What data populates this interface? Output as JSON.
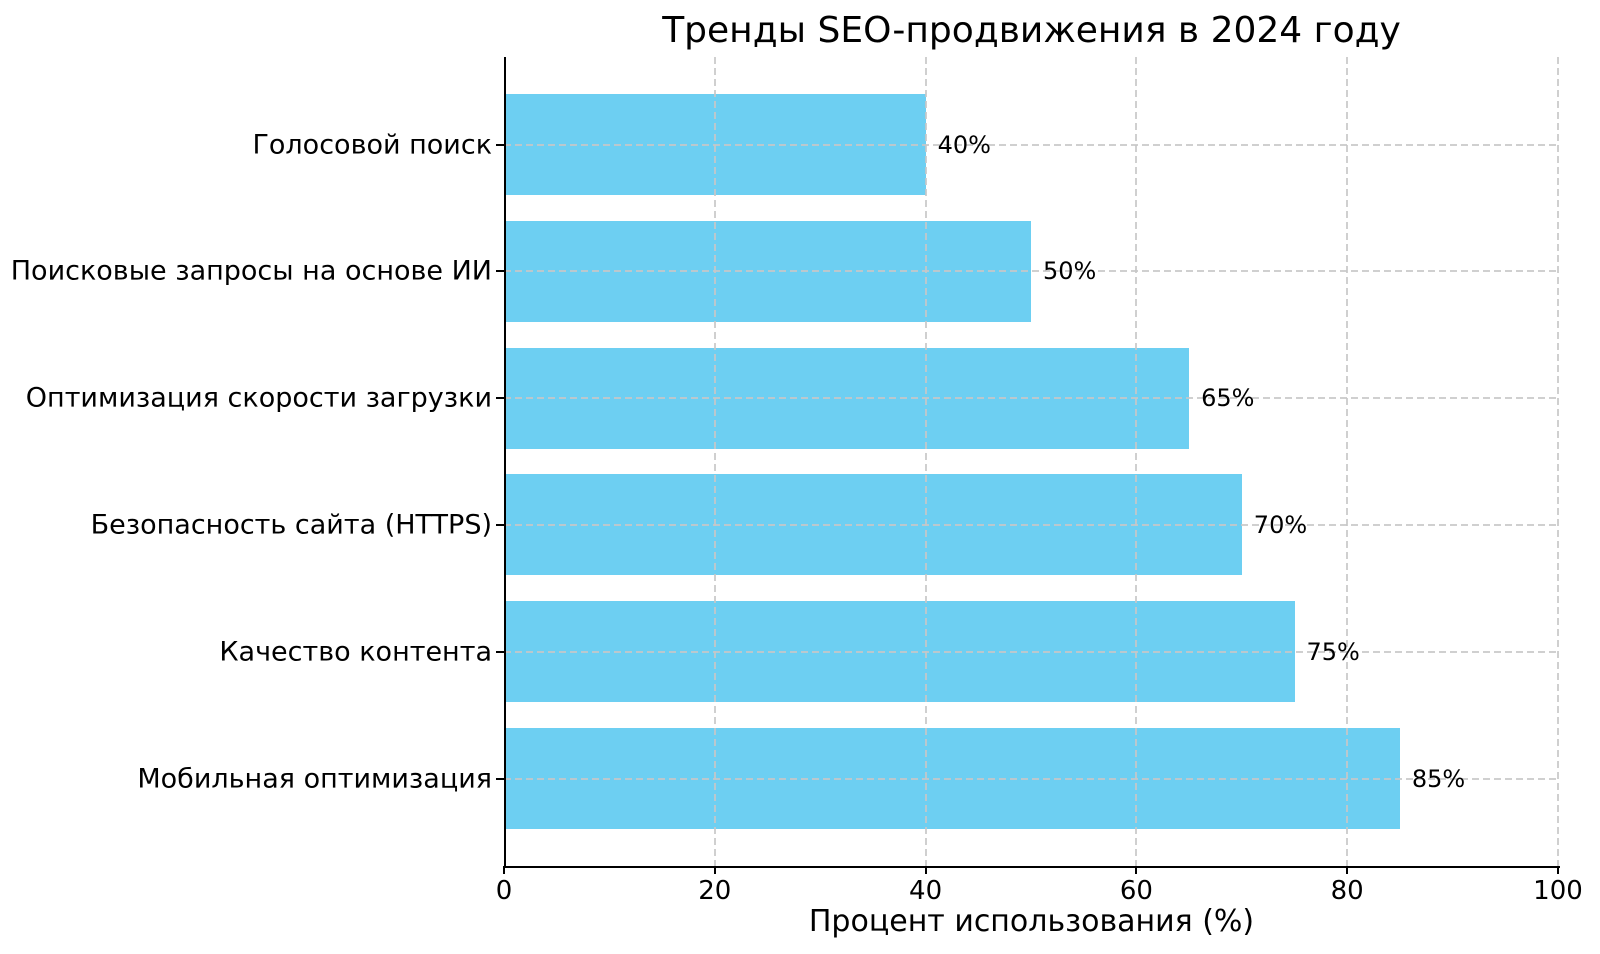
{
  "chart_data": {
    "type": "bar",
    "orientation": "horizontal",
    "title": "Тренды SEO-продвижения в 2024 году",
    "xlabel": "Процент использования (%)",
    "ylabel": "",
    "categories": [
      "Голосовой поиск",
      "Поисковые запросы на основе ИИ",
      "Оптимизация скорости загрузки",
      "Безопасность сайта (HTTPS)",
      "Качество контента",
      "Мобильная оптимизация"
    ],
    "values": [
      40,
      50,
      65,
      70,
      75,
      85
    ],
    "value_labels": [
      "40%",
      "50%",
      "65%",
      "70%",
      "75%",
      "85%"
    ],
    "xlim": [
      0,
      100
    ],
    "xticks": [
      0,
      20,
      40,
      60,
      80,
      100
    ],
    "grid": true,
    "grid_style": "dashed",
    "legend_position": "none",
    "bar_color": "#6DCFF2",
    "grid_color": "#c7c7c7",
    "axis_color": "#000000",
    "text_color": "#000000",
    "background_color": "#ffffff"
  }
}
